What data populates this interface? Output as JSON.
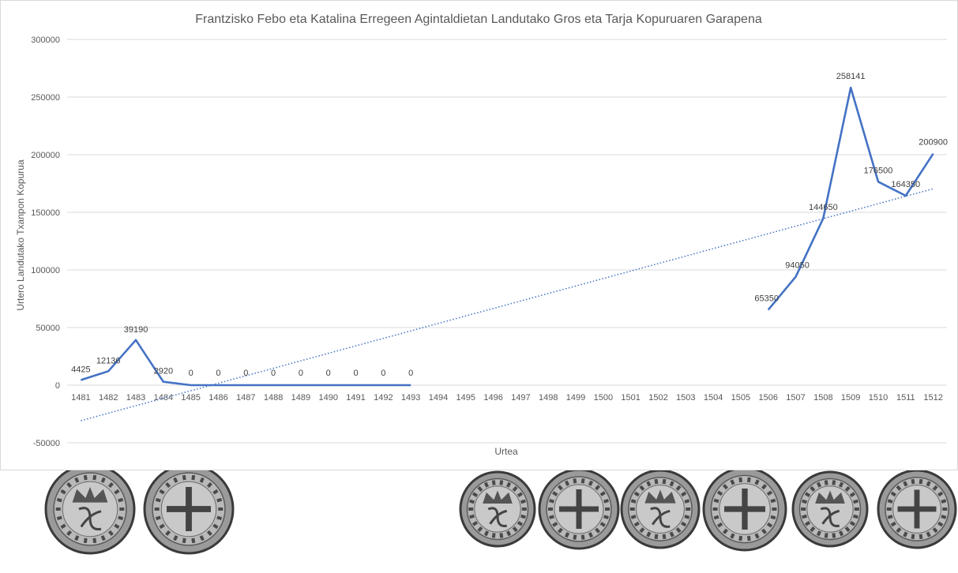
{
  "chart_data": {
    "type": "line",
    "title": "Frantzisko Febo eta Katalina Erregeen Agintaldietan Landutako Gros eta Tarja Kopuruaren Garapena",
    "xlabel": "Urtea",
    "ylabel": "Urtero Landutako Txanpon Kopurua",
    "ylim": [
      -50000,
      300000
    ],
    "yticks": [
      -50000,
      0,
      50000,
      100000,
      150000,
      200000,
      250000,
      300000
    ],
    "ytick_labels": [
      "-50000",
      "0",
      "50000",
      "100000",
      "150000",
      "200000",
      "250000",
      "300000"
    ],
    "categories": [
      "1481",
      "1482",
      "1483",
      "1484",
      "1485",
      "1486",
      "1487",
      "1488",
      "1489",
      "1490",
      "1491",
      "1492",
      "1493",
      "1494",
      "1495",
      "1496",
      "1497",
      "1498",
      "1499",
      "1500",
      "1501",
      "1502",
      "1503",
      "1504",
      "1505",
      "1506",
      "1507",
      "1508",
      "1509",
      "1510",
      "1511",
      "1512"
    ],
    "series": [
      {
        "color": "#4472c4",
        "values": [
          4425,
          12136,
          39190,
          2920,
          0,
          0,
          0,
          0,
          0,
          0,
          0,
          0,
          0,
          null,
          null,
          null,
          null,
          null,
          null,
          null,
          null,
          null,
          null,
          null,
          null,
          65350,
          94050,
          144650,
          258141,
          176500,
          164350,
          200900
        ],
        "labels": [
          "4425",
          "12136",
          "39190",
          "2920",
          "0",
          "0",
          "0",
          "0",
          "0",
          "0",
          "0",
          "0",
          "0",
          null,
          null,
          null,
          null,
          null,
          null,
          null,
          null,
          null,
          null,
          null,
          null,
          "65350",
          "94050",
          "144650",
          "258141",
          "176500",
          "164350",
          "200900"
        ]
      }
    ],
    "trendline": {
      "type": "linear",
      "style": "dotted",
      "color": "#4472c4"
    },
    "grid": true,
    "legend": "none"
  },
  "coins": {
    "group_1": [
      "coin-obverse-crowned-monogram",
      "coin-reverse-cross"
    ],
    "group_2": [
      "coin-obverse-crowned-monogram",
      "coin-reverse-cross",
      "coin-obverse-crowned-monogram",
      "coin-reverse-cross",
      "coin-obverse-crowned-monogram",
      "coin-reverse-cross"
    ]
  },
  "colors": {
    "line": "#4472c4",
    "grid": "#d9d9d9",
    "text": "#595959"
  }
}
